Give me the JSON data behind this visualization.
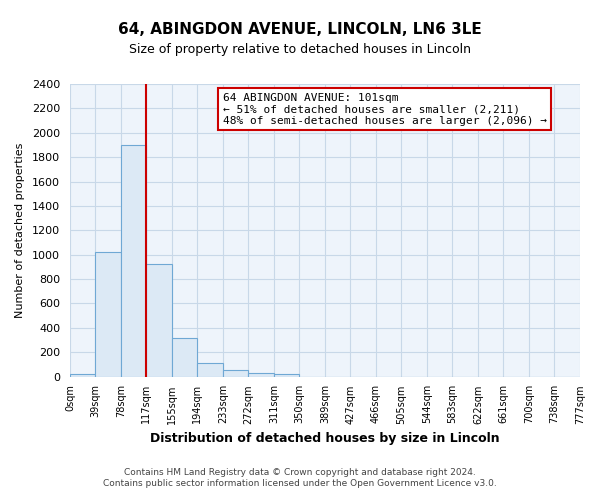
{
  "title": "64, ABINGDON AVENUE, LINCOLN, LN6 3LE",
  "subtitle": "Size of property relative to detached houses in Lincoln",
  "xlabel": "Distribution of detached houses by size in Lincoln",
  "ylabel": "Number of detached properties",
  "bar_values": [
    20,
    1025,
    1900,
    920,
    320,
    110,
    50,
    25,
    20,
    0,
    0,
    0,
    0,
    0,
    0,
    0,
    0,
    0,
    0,
    0
  ],
  "bar_labels": [
    "0sqm",
    "39sqm",
    "78sqm",
    "117sqm",
    "155sqm",
    "194sqm",
    "233sqm",
    "272sqm",
    "311sqm",
    "350sqm",
    "389sqm",
    "427sqm",
    "466sqm",
    "505sqm",
    "544sqm",
    "583sqm",
    "622sqm",
    "661sqm",
    "700sqm",
    "738sqm",
    "777sqm"
  ],
  "bar_color": "#dce9f5",
  "bar_edge_color": "#6fa8d4",
  "vline_x": 3.0,
  "vline_color": "#cc0000",
  "ylim": [
    0,
    2400
  ],
  "yticks": [
    0,
    200,
    400,
    600,
    800,
    1000,
    1200,
    1400,
    1600,
    1800,
    2000,
    2200,
    2400
  ],
  "annotation_title": "64 ABINGDON AVENUE: 101sqm",
  "annotation_line1": "← 51% of detached houses are smaller (2,211)",
  "annotation_line2": "48% of semi-detached houses are larger (2,096) →",
  "annotation_box_color": "#ffffff",
  "annotation_box_edge": "#cc0000",
  "footer_line1": "Contains HM Land Registry data © Crown copyright and database right 2024.",
  "footer_line2": "Contains public sector information licensed under the Open Government Licence v3.0.",
  "background_color": "#ffffff",
  "plot_bg_color": "#eef4fb",
  "grid_color": "#c8d8e8"
}
